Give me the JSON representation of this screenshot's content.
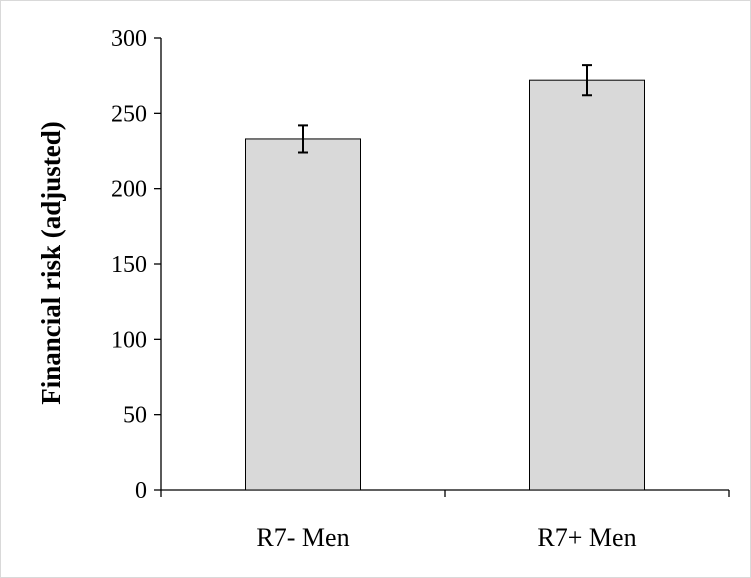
{
  "chart_data": {
    "type": "bar",
    "categories": [
      "R7- Men",
      "R7+ Men"
    ],
    "values": [
      233,
      272
    ],
    "errors": [
      9,
      10
    ],
    "title": "",
    "xlabel": "",
    "ylabel": "Financial risk (adjusted)",
    "ylim": [
      0,
      300
    ],
    "yticks": [
      0,
      50,
      100,
      150,
      200,
      250,
      300
    ],
    "ytick_labels": [
      "0",
      "50",
      "100",
      "150",
      "200",
      "250",
      "300"
    ],
    "grid": false,
    "legend": "none",
    "bar_color": "#d9d9d9",
    "bar_edge_color": "#000000"
  }
}
